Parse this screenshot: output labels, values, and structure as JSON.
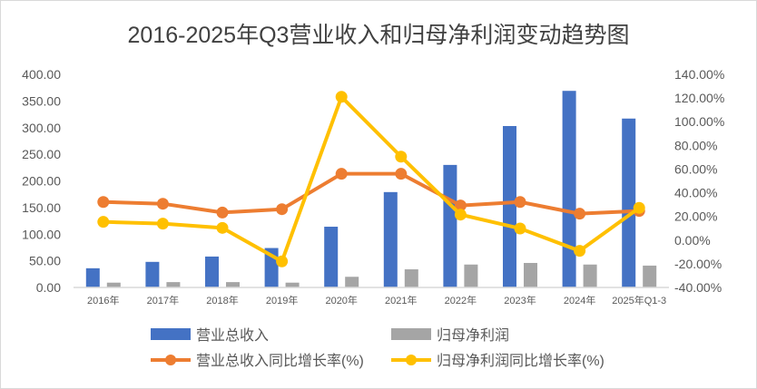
{
  "chart_data": {
    "type": "bar+line",
    "title": "2016-2025年Q3营业收入和归母净利润变动趋势图",
    "categories": [
      "2016年",
      "2017年",
      "2018年",
      "2019年",
      "2020年",
      "2021年",
      "2022年",
      "2023年",
      "2024年",
      "2025年Q1-3"
    ],
    "left_axis": {
      "min": 0,
      "max": 400,
      "step": 50,
      "ticks": [
        "0.00",
        "50.00",
        "100.00",
        "150.00",
        "200.00",
        "250.00",
        "300.00",
        "350.00",
        "400.00"
      ]
    },
    "right_axis": {
      "min": -40,
      "max": 140,
      "step": 20,
      "ticks": [
        "-40.00%",
        "-20.00%",
        "0.00%",
        "20.00%",
        "40.00%",
        "60.00%",
        "80.00%",
        "100.00%",
        "120.00%",
        "140.00%"
      ]
    },
    "series": [
      {
        "name": "营业总收入",
        "type": "bar",
        "axis": "left",
        "color": "#4472C4",
        "values": [
          36,
          48,
          58,
          74,
          114,
          179,
          230,
          303,
          369,
          317
        ]
      },
      {
        "name": "归母净利润",
        "type": "bar",
        "axis": "left",
        "color": "#A5A5A5",
        "values": [
          9,
          10,
          10,
          9,
          20,
          34,
          43,
          46,
          43,
          41
        ]
      },
      {
        "name": "营业总收入同比增长率(%)",
        "type": "line",
        "axis": "right",
        "color": "#ED7D31",
        "values": [
          32.2,
          30.7,
          23.3,
          26.1,
          56,
          56,
          29.2,
          32.2,
          22.3,
          24.6
        ]
      },
      {
        "name": "归母净利润同比增长率(%)",
        "type": "line",
        "axis": "right",
        "color": "#FFC000",
        "values": [
          15.4,
          13.9,
          10.3,
          -18,
          121,
          70.5,
          21.5,
          9.8,
          -9.1,
          27.2
        ]
      }
    ],
    "grid": false,
    "legend_position": "bottom"
  }
}
